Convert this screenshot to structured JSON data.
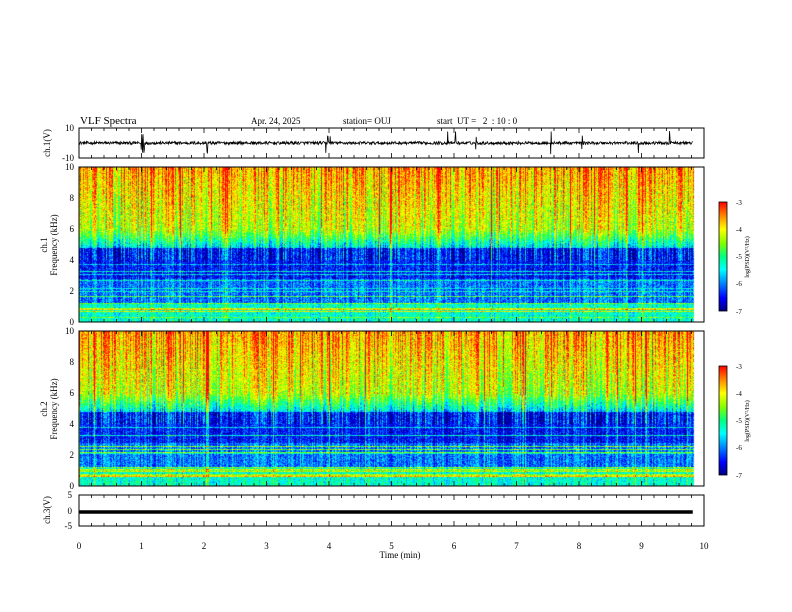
{
  "header": {
    "title": "VLF Spectra",
    "date": "Apr. 24, 2025",
    "station": "station= OUJ",
    "start_ut": "start  UT =   2  : 10 : 0"
  },
  "chart_data": [
    {
      "type": "line",
      "name": "ch1-waveform",
      "ylabel": "ch.1(V)",
      "ylim": [
        -10,
        10
      ],
      "yticks": [
        "10",
        "-10"
      ],
      "xlim": [
        0,
        10
      ],
      "data_extent_min": [
        0,
        9.82
      ],
      "baseline_v": 0,
      "noise_amplitude_v": 2,
      "spike_times_min": [
        1.0,
        1.02,
        1.04,
        3.95,
        3.98,
        4.02,
        2.05,
        5.9,
        6.02,
        6.35,
        7.55,
        8.05,
        8.95,
        9.45
      ]
    },
    {
      "type": "heatmap",
      "name": "ch1-spectrogram",
      "ylabel": "ch.1\nFrequency (kHz)",
      "ylabel_line1": "ch.1",
      "ylabel_line2": "Frequency (kHz)",
      "ylim": [
        0,
        10
      ],
      "yticks": [
        "0",
        "2",
        "4",
        "6",
        "8",
        "10"
      ],
      "xlim": [
        0,
        10
      ],
      "colorbar": {
        "label": "log(PSD)(V²/Hz)",
        "range": [
          -7,
          -3
        ],
        "ticks": [
          "-3",
          "-4",
          "-5",
          "-6",
          "-7"
        ]
      }
    },
    {
      "type": "heatmap",
      "name": "ch2-spectrogram",
      "ylabel": "ch.2\nFrequency (kHz)",
      "ylabel_line1": "ch.2",
      "ylabel_line2": "Frequency (kHz)",
      "ylim": [
        0,
        10
      ],
      "yticks": [
        "0",
        "2",
        "4",
        "6",
        "8",
        "10"
      ],
      "xlim": [
        0,
        10
      ],
      "colorbar": {
        "label": "log(PSD)(V²/Hz)",
        "range": [
          -7,
          -3
        ],
        "ticks": [
          "-3",
          "-4",
          "-5",
          "-6",
          "-7"
        ]
      }
    },
    {
      "type": "line",
      "name": "ch3-waveform",
      "ylabel": "ch.3(V)",
      "ylim": [
        -5,
        5
      ],
      "yticks": [
        "5",
        "0",
        "-5"
      ],
      "xlim": [
        0,
        10
      ],
      "constant_value_v": -0.5
    }
  ],
  "xaxis": {
    "label": "Time (min)",
    "ticks": [
      "0",
      "1",
      "2",
      "3",
      "4",
      "5",
      "6",
      "7",
      "8",
      "9",
      "10"
    ]
  },
  "colormap": [
    "#000080",
    "#0000ff",
    "#0080ff",
    "#00ffff",
    "#00ff80",
    "#80ff00",
    "#ffff00",
    "#ff8000",
    "#ff0000"
  ]
}
